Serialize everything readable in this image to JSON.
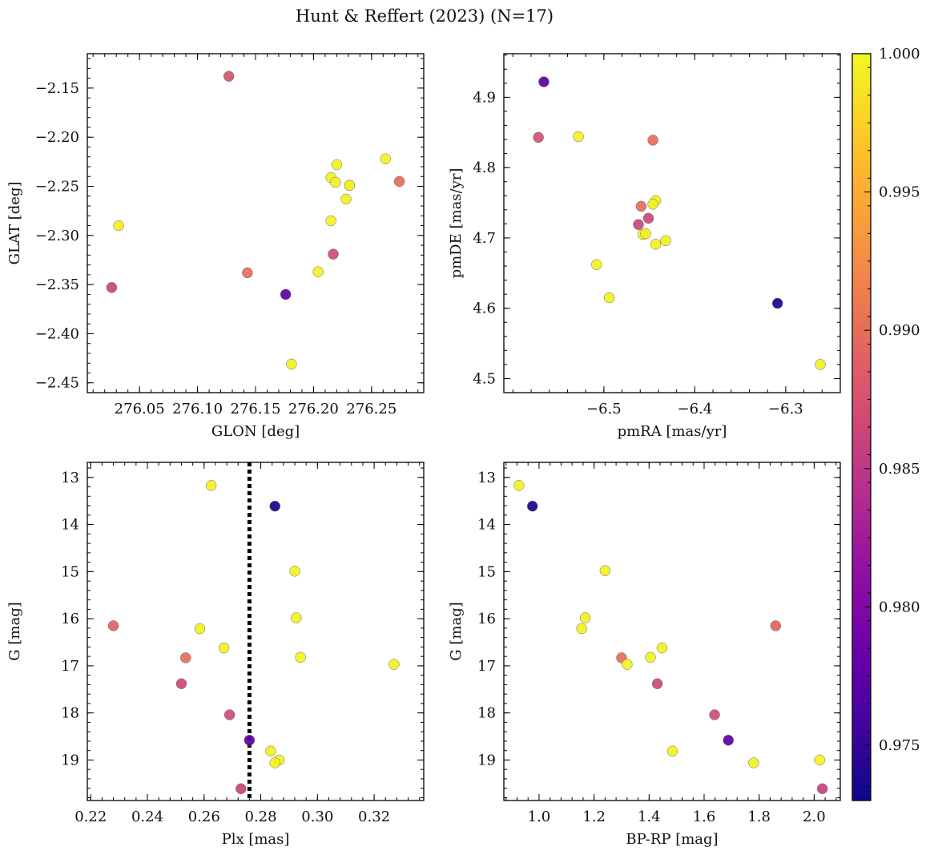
{
  "chart_data": {
    "title": "Hunt & Reffert (2023) (N=17)",
    "colorbar": {
      "cmap": "plasma",
      "range": [
        0.973,
        1.0
      ],
      "ticks": [
        0.975,
        0.98,
        0.985,
        0.99,
        0.995,
        1.0
      ],
      "tick_labels": [
        "0.975",
        "0.980",
        "0.985",
        "0.990",
        "0.995",
        "1.000"
      ]
    },
    "panels": [
      {
        "type": "scatter",
        "xlabel": "GLON [deg]",
        "ylabel": "GLAT [deg]",
        "xlim": [
          276.005,
          276.295
        ],
        "ylim": [
          -2.46,
          -2.115
        ],
        "xticks": [
          276.05,
          276.1,
          276.15,
          276.2,
          276.25
        ],
        "xtick_labels": [
          "276.05",
          "276.10",
          "276.15",
          "276.20",
          "276.25"
        ],
        "yticks": [
          -2.15,
          -2.2,
          -2.25,
          -2.3,
          -2.35,
          -2.4,
          -2.45
        ],
        "ytick_labels": [
          "−2.15",
          "−2.20",
          "−2.25",
          "−2.30",
          "−2.35",
          "−2.40",
          "−2.45"
        ],
        "y_inverted": false,
        "points": [
          {
            "x": 276.127,
            "y": -2.138,
            "c": 0.9875
          },
          {
            "x": 276.032,
            "y": -2.29,
            "c": 0.9993
          },
          {
            "x": 276.026,
            "y": -2.353,
            "c": 0.986
          },
          {
            "x": 276.143,
            "y": -2.338,
            "c": 0.99
          },
          {
            "x": 276.176,
            "y": -2.36,
            "c": 0.9775
          },
          {
            "x": 276.181,
            "y": -2.431,
            "c": 0.9995
          },
          {
            "x": 276.204,
            "y": -2.337,
            "c": 0.9995
          },
          {
            "x": 276.215,
            "y": -2.285,
            "c": 0.9995
          },
          {
            "x": 276.217,
            "y": -2.319,
            "c": 0.987
          },
          {
            "x": 276.215,
            "y": -2.241,
            "c": 0.9995
          },
          {
            "x": 276.219,
            "y": -2.246,
            "c": 0.9995
          },
          {
            "x": 276.22,
            "y": -2.228,
            "c": 0.9995
          },
          {
            "x": 276.228,
            "y": -2.263,
            "c": 0.9995
          },
          {
            "x": 276.231,
            "y": -2.249,
            "c": 0.998
          },
          {
            "x": 276.231,
            "y": -2.249,
            "c": 0.9995
          },
          {
            "x": 276.262,
            "y": -2.222,
            "c": 0.9995
          },
          {
            "x": 276.274,
            "y": -2.245,
            "c": 0.99
          }
        ]
      },
      {
        "type": "scatter",
        "xlabel": "pmRA [mas/yr]",
        "ylabel": "pmDE [mas/yr]",
        "xlim": [
          -6.61,
          -6.24
        ],
        "ylim": [
          4.48,
          4.962
        ],
        "xticks": [
          -6.5,
          -6.4,
          -6.3
        ],
        "xtick_labels": [
          "−6.5",
          "−6.4",
          "−6.3"
        ],
        "yticks": [
          4.5,
          4.6,
          4.7,
          4.8,
          4.9
        ],
        "ytick_labels": [
          "4.5",
          "4.6",
          "4.7",
          "4.8",
          "4.9"
        ],
        "y_inverted": false,
        "points": [
          {
            "x": -6.566,
            "y": 4.922,
            "c": 0.9775
          },
          {
            "x": -6.572,
            "y": 4.843,
            "c": 0.9875
          },
          {
            "x": -6.528,
            "y": 4.844,
            "c": 0.9995
          },
          {
            "x": -6.446,
            "y": 4.839,
            "c": 0.99
          },
          {
            "x": -6.459,
            "y": 4.745,
            "c": 0.99
          },
          {
            "x": -6.443,
            "y": 4.753,
            "c": 0.9995
          },
          {
            "x": -6.446,
            "y": 4.748,
            "c": 0.9995
          },
          {
            "x": -6.451,
            "y": 4.728,
            "c": 0.9865
          },
          {
            "x": -6.462,
            "y": 4.719,
            "c": 0.9865
          },
          {
            "x": -6.457,
            "y": 4.705,
            "c": 0.9995
          },
          {
            "x": -6.454,
            "y": 4.706,
            "c": 0.9995
          },
          {
            "x": -6.443,
            "y": 4.691,
            "c": 0.9995
          },
          {
            "x": -6.432,
            "y": 4.696,
            "c": 0.9995
          },
          {
            "x": -6.508,
            "y": 4.662,
            "c": 0.9995
          },
          {
            "x": -6.494,
            "y": 4.615,
            "c": 0.9995
          },
          {
            "x": -6.309,
            "y": 4.607,
            "c": 0.9735
          },
          {
            "x": -6.262,
            "y": 4.52,
            "c": 0.9995
          }
        ]
      },
      {
        "type": "scatter",
        "xlabel": "Plx [mas]",
        "ylabel": "G [mag]",
        "xlim": [
          0.2188,
          0.3375
        ],
        "ylim": [
          12.68,
          19.86
        ],
        "xticks": [
          0.22,
          0.24,
          0.26,
          0.28,
          0.3,
          0.32
        ],
        "xtick_labels": [
          "0.22",
          "0.24",
          "0.26",
          "0.28",
          "0.30",
          "0.32"
        ],
        "yticks": [
          13,
          14,
          15,
          16,
          17,
          18,
          19
        ],
        "ytick_labels": [
          "13",
          "14",
          "15",
          "16",
          "17",
          "18",
          "19"
        ],
        "y_inverted": true,
        "vline": {
          "x": 0.276,
          "style": "dotted"
        },
        "points": [
          {
            "x": 0.2625,
            "y": 13.17,
            "c": 0.9995
          },
          {
            "x": 0.285,
            "y": 13.61,
            "c": 0.9735
          },
          {
            "x": 0.292,
            "y": 14.99,
            "c": 0.9995
          },
          {
            "x": 0.2925,
            "y": 15.98,
            "c": 0.9995
          },
          {
            "x": 0.228,
            "y": 16.15,
            "c": 0.989
          },
          {
            "x": 0.2585,
            "y": 16.21,
            "c": 0.9995
          },
          {
            "x": 0.267,
            "y": 16.62,
            "c": 0.9995
          },
          {
            "x": 0.2535,
            "y": 16.83,
            "c": 0.99
          },
          {
            "x": 0.294,
            "y": 16.82,
            "c": 0.9995
          },
          {
            "x": 0.327,
            "y": 16.97,
            "c": 0.9995
          },
          {
            "x": 0.252,
            "y": 17.38,
            "c": 0.9865
          },
          {
            "x": 0.269,
            "y": 18.04,
            "c": 0.987
          },
          {
            "x": 0.276,
            "y": 18.58,
            "c": 0.9775
          },
          {
            "x": 0.2835,
            "y": 18.81,
            "c": 0.9995
          },
          {
            "x": 0.2865,
            "y": 19.0,
            "c": 0.9995
          },
          {
            "x": 0.285,
            "y": 19.06,
            "c": 0.9995
          },
          {
            "x": 0.273,
            "y": 19.61,
            "c": 0.986
          }
        ]
      },
      {
        "type": "scatter",
        "xlabel": "BP-RP [mag]",
        "ylabel": "G [mag]",
        "xlim": [
          0.872,
          2.095
        ],
        "ylim": [
          12.68,
          19.86
        ],
        "xticks": [
          1.0,
          1.2,
          1.4,
          1.6,
          1.8,
          2.0
        ],
        "xtick_labels": [
          "1.0",
          "1.2",
          "1.4",
          "1.6",
          "1.8",
          "2.0"
        ],
        "yticks": [
          13,
          14,
          15,
          16,
          17,
          18,
          19
        ],
        "ytick_labels": [
          "13",
          "14",
          "15",
          "16",
          "17",
          "18",
          "19"
        ],
        "y_inverted": true,
        "points": [
          {
            "x": 0.927,
            "y": 13.17,
            "c": 0.9995
          },
          {
            "x": 0.976,
            "y": 13.61,
            "c": 0.9735
          },
          {
            "x": 1.24,
            "y": 14.98,
            "c": 0.9995
          },
          {
            "x": 1.168,
            "y": 15.98,
            "c": 0.9995
          },
          {
            "x": 1.155,
            "y": 16.21,
            "c": 0.9995
          },
          {
            "x": 1.86,
            "y": 16.15,
            "c": 0.989
          },
          {
            "x": 1.447,
            "y": 16.62,
            "c": 0.9995
          },
          {
            "x": 1.3,
            "y": 16.83,
            "c": 0.99
          },
          {
            "x": 1.405,
            "y": 16.82,
            "c": 0.9995
          },
          {
            "x": 1.32,
            "y": 16.97,
            "c": 0.9995
          },
          {
            "x": 1.43,
            "y": 17.38,
            "c": 0.9865
          },
          {
            "x": 1.638,
            "y": 18.04,
            "c": 0.987
          },
          {
            "x": 1.688,
            "y": 18.58,
            "c": 0.9775
          },
          {
            "x": 1.485,
            "y": 18.81,
            "c": 0.9995
          },
          {
            "x": 1.78,
            "y": 19.06,
            "c": 0.9995
          },
          {
            "x": 2.02,
            "y": 19.0,
            "c": 0.9995
          },
          {
            "x": 2.03,
            "y": 19.61,
            "c": 0.986
          }
        ]
      }
    ]
  }
}
